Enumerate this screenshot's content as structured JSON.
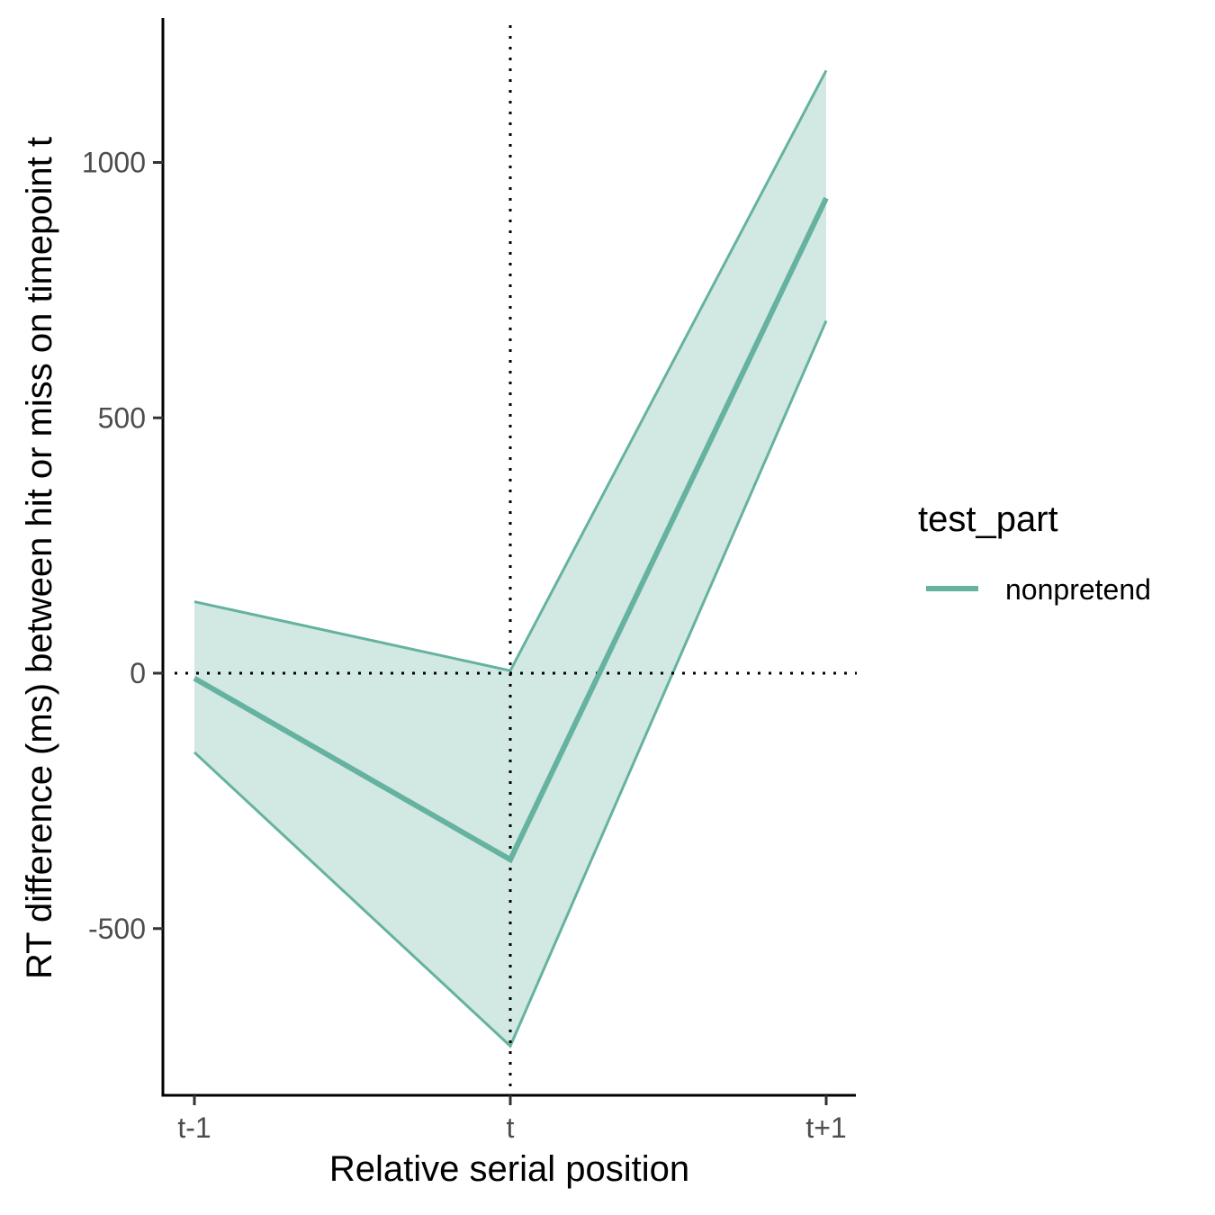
{
  "chart_data": {
    "type": "line",
    "title": "",
    "xlabel": "Relative serial position",
    "ylabel": "RT difference (ms) between hit or miss on timepoint t",
    "categories": [
      "t-1",
      "t",
      "t+1"
    ],
    "y_ticks": [
      -500,
      0,
      500,
      1000
    ],
    "y_tick_labels": [
      "-500",
      "0",
      "500",
      "1000"
    ],
    "ylim": [
      -820,
      1280
    ],
    "grid": false,
    "reference_lines": {
      "horizontal_y": 0,
      "vertical_x": "t",
      "style": "dotted"
    },
    "legend": {
      "title": "test_part",
      "placement": "right"
    },
    "series": [
      {
        "name": "nonpretend",
        "color": "#66b2a0",
        "ribbon_color": "#d2e8e2",
        "values": [
          -10,
          -365,
          930
        ],
        "lower": [
          -155,
          -730,
          690
        ],
        "upper": [
          140,
          5,
          1180
        ]
      }
    ]
  }
}
